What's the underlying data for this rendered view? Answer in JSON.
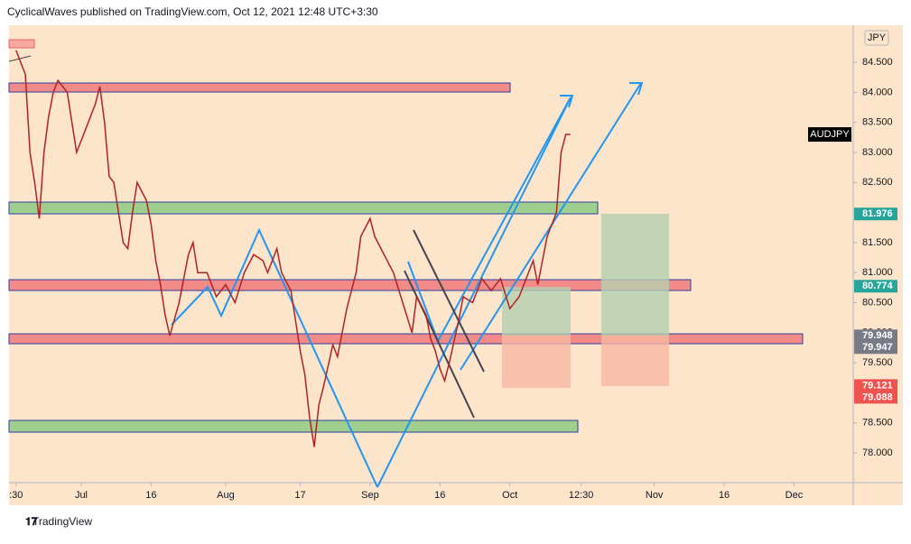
{
  "header": {
    "publisher": "CyclicalWaves published on TradingView.com, Oct 12, 2021 12:48 UTC+3:30"
  },
  "footer": {
    "brand": "TradingView"
  },
  "chart_data": {
    "type": "line",
    "currency": "JPY",
    "symbol": "AUDJPY",
    "series": [
      {
        "name": "AUDJPY",
        "color": "#b22222",
        "x": [
          168,
          170,
          171,
          172,
          173,
          174,
          175,
          176,
          177,
          179,
          180,
          181,
          183,
          185,
          186,
          187,
          188,
          189,
          191,
          192,
          193,
          194,
          196,
          197,
          198,
          199,
          200,
          201,
          203,
          205,
          206,
          207,
          209,
          211,
          213,
          215,
          217,
          219,
          221,
          222,
          224,
          225,
          227,
          228,
          229,
          230,
          231,
          232,
          233,
          234,
          236,
          237,
          239,
          241,
          242,
          244,
          245,
          247,
          249,
          251,
          253,
          254,
          256,
          257,
          258,
          259,
          260,
          261,
          263,
          264,
          266,
          268,
          270,
          272,
          274,
          276,
          278,
          279,
          280,
          282,
          284,
          285,
          286,
          287
        ],
        "values": [
          84.7,
          84.3,
          83.0,
          82.5,
          81.9,
          83.0,
          83.6,
          84.0,
          84.2,
          84.0,
          83.5,
          83.0,
          83.4,
          83.8,
          84.1,
          83.5,
          82.6,
          82.5,
          81.5,
          81.4,
          82.0,
          82.5,
          82.2,
          81.8,
          81.2,
          80.8,
          80.3,
          79.95,
          80.5,
          81.3,
          81.5,
          81.0,
          81.0,
          80.6,
          80.8,
          80.5,
          81.0,
          81.3,
          81.2,
          81.0,
          81.4,
          81.0,
          80.7,
          80.2,
          79.7,
          79.3,
          78.6,
          78.1,
          78.8,
          79.1,
          79.8,
          79.6,
          80.4,
          81.0,
          81.6,
          81.9,
          81.6,
          81.3,
          81.0,
          80.5,
          80.0,
          80.6,
          80.3,
          79.9,
          79.7,
          79.4,
          79.2,
          79.5,
          80.2,
          80.6,
          80.5,
          80.9,
          80.7,
          80.9,
          80.4,
          80.6,
          81.0,
          81.2,
          80.8,
          81.6,
          82.0,
          83.0,
          83.3,
          83.3
        ]
      }
    ],
    "price_labels": [
      {
        "value": 81.976,
        "color": "#26a69a"
      },
      {
        "value": 80.774,
        "color": "#26a69a"
      },
      {
        "value": 79.948,
        "color": "#787b86"
      },
      {
        "value": 79.947,
        "color": "#787b86"
      },
      {
        "value": 79.121,
        "color": "#ef5350"
      },
      {
        "value": 79.088,
        "color": "#ef5350"
      }
    ],
    "xlim": [
      166.5,
      347.7
    ],
    "xticks": [
      {
        "value": 168,
        "label": ":30"
      },
      {
        "value": 182,
        "label": "Jul"
      },
      {
        "value": 197,
        "label": "16"
      },
      {
        "value": 213,
        "label": "Aug"
      },
      {
        "value": 229,
        "label": "17"
      },
      {
        "value": 244,
        "label": "Sep"
      },
      {
        "value": 259,
        "label": "16"
      },
      {
        "value": 274,
        "label": "Oct"
      },
      {
        "value": 289.3,
        "label": "12:30"
      },
      {
        "value": 305,
        "label": "Nov"
      },
      {
        "value": 320,
        "label": "16"
      },
      {
        "value": 335,
        "label": "Dec"
      }
    ],
    "ylim": [
      77.505,
      85.117
    ],
    "yticks": [
      {
        "value": 78,
        "label": "78.000"
      },
      {
        "value": 78.5,
        "label": "78.500"
      },
      {
        "value": 79,
        "label": "79.000"
      },
      {
        "value": 79.5,
        "label": "79.500"
      },
      {
        "value": 80,
        "label": "80.000"
      },
      {
        "value": 80.5,
        "label": "80.500"
      },
      {
        "value": 81,
        "label": "81.000"
      },
      {
        "value": 81.5,
        "label": "81.500"
      },
      {
        "value": 82,
        "label": "82.000"
      },
      {
        "value": 82.5,
        "label": "82.500"
      },
      {
        "value": 83,
        "label": "83.000"
      },
      {
        "value": 83.5,
        "label": "83.500"
      },
      {
        "value": 84,
        "label": "84.000"
      },
      {
        "value": 84.5,
        "label": "84.500"
      }
    ]
  }
}
